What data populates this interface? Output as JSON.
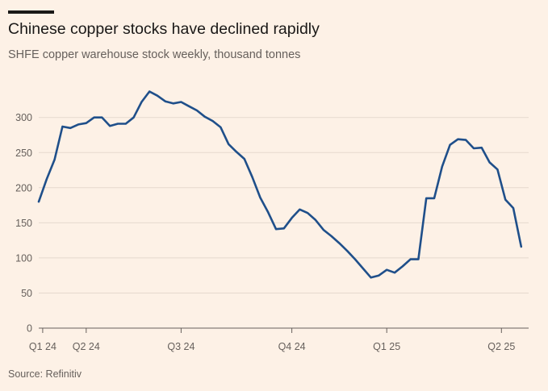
{
  "header": {
    "title": "Chinese copper stocks have declined rapidly",
    "subtitle": "SHFE copper warehouse stock weekly, thousand tonnes"
  },
  "footer": {
    "source": "Source: Refinitiv"
  },
  "colors": {
    "background": "#fdf1e6",
    "series": "#1f4f8a"
  },
  "chart_data": {
    "type": "line",
    "title": "Chinese copper stocks have declined rapidly",
    "subtitle": "SHFE copper warehouse stock weekly, thousand tonnes",
    "xlabel": "",
    "ylabel": "",
    "ylim": [
      0,
      325
    ],
    "yticks": [
      0,
      50,
      100,
      150,
      200,
      250,
      300
    ],
    "grid": true,
    "x_ticks": [
      {
        "label": "Q1 24",
        "week": 0.5
      },
      {
        "label": "Q2 24",
        "week": 6
      },
      {
        "label": "Q3 24",
        "week": 18
      },
      {
        "label": "Q4 24",
        "week": 32
      },
      {
        "label": "Q1 25",
        "week": 44
      },
      {
        "label": "Q2 25",
        "week": 58.5
      }
    ],
    "x_range": [
      0,
      62
    ],
    "series": [
      {
        "values": [
          180,
          212,
          240,
          287,
          285,
          290,
          292,
          300,
          300,
          288,
          291,
          291,
          300,
          322,
          337,
          331,
          323,
          320,
          322,
          316,
          310,
          301,
          295,
          286,
          262,
          251,
          241,
          215,
          186,
          165,
          141,
          142,
          157,
          169,
          164,
          154,
          140,
          131,
          121,
          110,
          98,
          85,
          72,
          75,
          83,
          79,
          88,
          98,
          98,
          185,
          185,
          230,
          261,
          269,
          268,
          256,
          257,
          236,
          226,
          183,
          171,
          116
        ]
      }
    ]
  }
}
